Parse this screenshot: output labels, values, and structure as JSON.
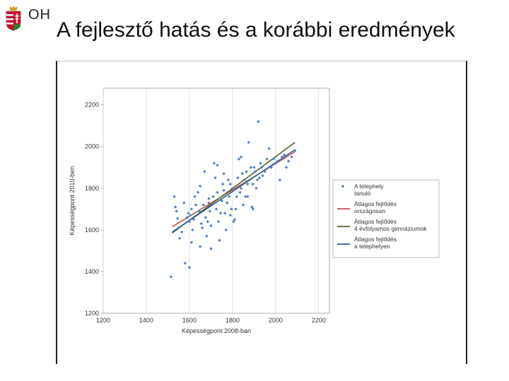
{
  "header": {
    "org": "OH",
    "title": "A fejlesztő hatás és a korábbi eredmények"
  },
  "chart_data": {
    "type": "scatter",
    "xlabel": "Képességpont 2008-ban",
    "ylabel": "Képességpont 2010-ben",
    "xlim": [
      1200,
      2250
    ],
    "ylim": [
      1200,
      2280
    ],
    "xticks": [
      "1200",
      "1400",
      "1600",
      "1800",
      "2000",
      "2200"
    ],
    "yticks": [
      "1200",
      "1400",
      "1600",
      "1800",
      "2000",
      "2200"
    ],
    "grid": "vertical",
    "legend_position": "right",
    "series": [
      {
        "name": "A telephely tanuló",
        "kind": "points",
        "color": "#4f81bd",
        "points": [
          [
            1515,
            1375
          ],
          [
            1530,
            1760
          ],
          [
            1535,
            1710
          ],
          [
            1540,
            1690
          ],
          [
            1545,
            1655
          ],
          [
            1550,
            1610
          ],
          [
            1555,
            1560
          ],
          [
            1565,
            1590
          ],
          [
            1575,
            1730
          ],
          [
            1580,
            1440
          ],
          [
            1590,
            1660
          ],
          [
            1595,
            1680
          ],
          [
            1600,
            1420
          ],
          [
            1600,
            1640
          ],
          [
            1605,
            1670
          ],
          [
            1610,
            1540
          ],
          [
            1610,
            1700
          ],
          [
            1615,
            1600
          ],
          [
            1620,
            1650
          ],
          [
            1625,
            1760
          ],
          [
            1630,
            1720
          ],
          [
            1640,
            1780
          ],
          [
            1645,
            1690
          ],
          [
            1650,
            1520
          ],
          [
            1655,
            1630
          ],
          [
            1660,
            1610
          ],
          [
            1665,
            1720
          ],
          [
            1670,
            1880
          ],
          [
            1675,
            1660
          ],
          [
            1680,
            1570
          ],
          [
            1685,
            1640
          ],
          [
            1690,
            1750
          ],
          [
            1695,
            1690
          ],
          [
            1700,
            1510
          ],
          [
            1700,
            1620
          ],
          [
            1710,
            1760
          ],
          [
            1715,
            1920
          ],
          [
            1720,
            1850
          ],
          [
            1725,
            1700
          ],
          [
            1730,
            1780
          ],
          [
            1735,
            1640
          ],
          [
            1740,
            1550
          ],
          [
            1745,
            1680
          ],
          [
            1750,
            1740
          ],
          [
            1755,
            1820
          ],
          [
            1760,
            1790
          ],
          [
            1765,
            1680
          ],
          [
            1770,
            1600
          ],
          [
            1775,
            1730
          ],
          [
            1780,
            1840
          ],
          [
            1785,
            1760
          ],
          [
            1790,
            1820
          ],
          [
            1795,
            1700
          ],
          [
            1800,
            1800
          ],
          [
            1805,
            1640
          ],
          [
            1810,
            1650
          ],
          [
            1815,
            1700
          ],
          [
            1820,
            1760
          ],
          [
            1825,
            1850
          ],
          [
            1830,
            1940
          ],
          [
            1835,
            1780
          ],
          [
            1840,
            1800
          ],
          [
            1845,
            1870
          ],
          [
            1850,
            1720
          ],
          [
            1855,
            1840
          ],
          [
            1860,
            1760
          ],
          [
            1865,
            1880
          ],
          [
            1870,
            1760
          ],
          [
            1875,
            2020
          ],
          [
            1880,
            1840
          ],
          [
            1885,
            1900
          ],
          [
            1890,
            1710
          ],
          [
            1895,
            1700
          ],
          [
            1900,
            1900
          ],
          [
            1905,
            1880
          ],
          [
            1910,
            1800
          ],
          [
            1915,
            1840
          ],
          [
            1920,
            2120
          ],
          [
            1925,
            1850
          ],
          [
            1930,
            1920
          ],
          [
            1935,
            1900
          ],
          [
            1940,
            1860
          ],
          [
            1950,
            1880
          ],
          [
            1960,
            1940
          ],
          [
            1970,
            1990
          ],
          [
            1980,
            1900
          ],
          [
            1990,
            1940
          ],
          [
            2000,
            1920
          ],
          [
            2010,
            1930
          ],
          [
            2020,
            1840
          ],
          [
            2030,
            1950
          ],
          [
            2040,
            1960
          ],
          [
            2050,
            1900
          ],
          [
            2060,
            1930
          ],
          [
            2075,
            1950
          ],
          [
            2090,
            1980
          ],
          [
            1650,
            1810
          ],
          [
            1690,
            1730
          ],
          [
            1730,
            1910
          ],
          [
            1760,
            1870
          ],
          [
            1790,
            1670
          ],
          [
            1840,
            1950
          ],
          [
            1870,
            1820
          ],
          [
            1895,
            1820
          ]
        ]
      },
      {
        "name": "Átlagos fejlődés országosan",
        "kind": "line",
        "color": "#c0504d",
        "points": [
          [
            1520,
            1615
          ],
          [
            2090,
            1975
          ]
        ]
      },
      {
        "name": "Átlagos fejlődés 4 évfolyamos gimnáziumok",
        "kind": "line",
        "color": "#4f6228",
        "points": [
          [
            1520,
            1585
          ],
          [
            2090,
            2020
          ]
        ]
      },
      {
        "name": "Átlagos fejlődés a telephelyen",
        "kind": "line",
        "color": "#2e5c9a",
        "points": [
          [
            1520,
            1590
          ],
          [
            2090,
            1985
          ]
        ]
      }
    ],
    "legend": [
      {
        "label_lines": [
          "A telephely",
          "tanuló"
        ],
        "color": "#4f81bd",
        "marker": "point"
      },
      {
        "label_lines": [
          "Átlagos fejlődés",
          "országosan"
        ],
        "color": "#c0504d",
        "marker": "line"
      },
      {
        "label_lines": [
          "Átlagos fejlődés",
          "4 évfolyamos gimnáziumok"
        ],
        "color": "#4f6228",
        "marker": "line"
      },
      {
        "label_lines": [
          "Átlagos fejlődés",
          "a telephelyen"
        ],
        "color": "#2e5c9a",
        "marker": "line"
      }
    ]
  }
}
